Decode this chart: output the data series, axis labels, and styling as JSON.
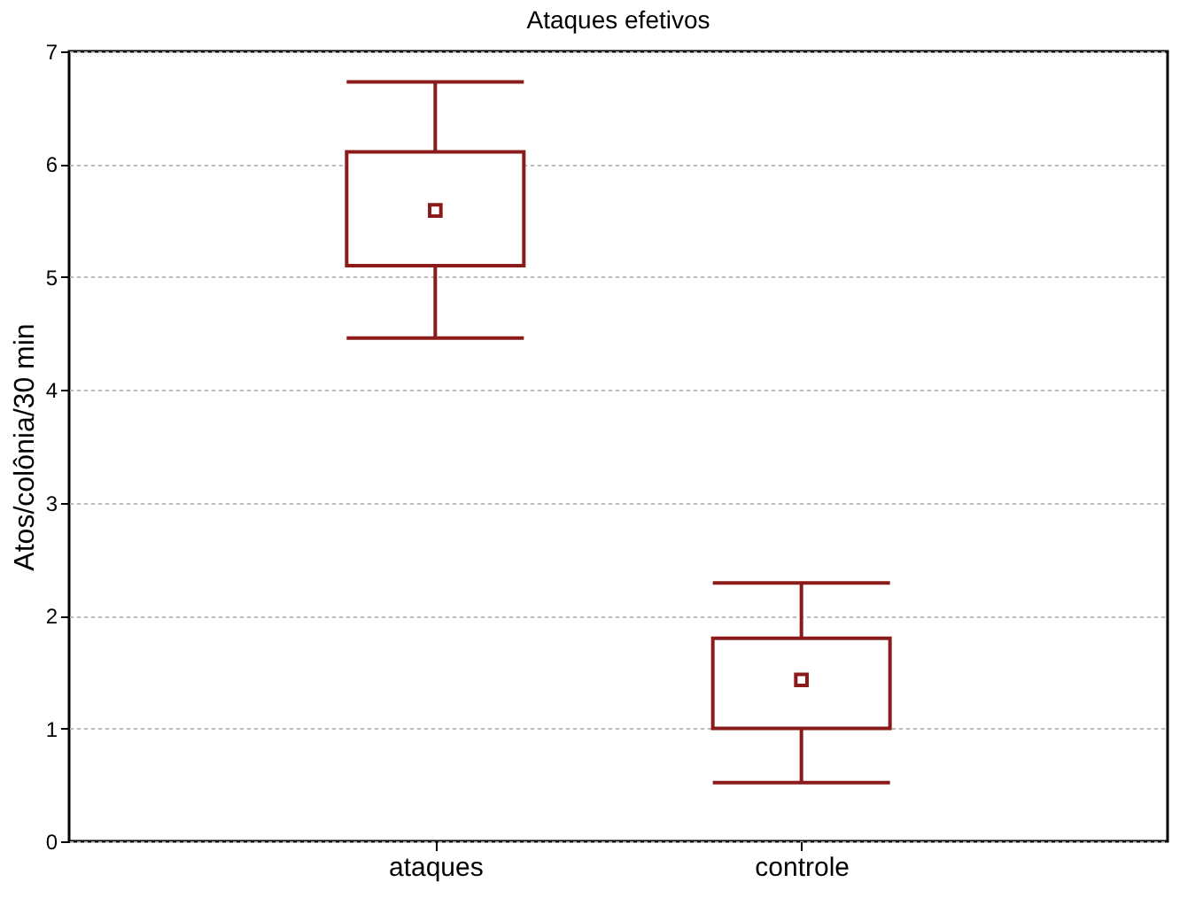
{
  "chart_data": {
    "type": "box",
    "title": "Ataques efetivos",
    "ylabel": "Atos/colônia/30 min",
    "categories": [
      "ataques",
      "controle"
    ],
    "boxes": [
      {
        "low": 4.46,
        "q1": 5.1,
        "median": 5.59,
        "q3": 6.11,
        "high": 6.73
      },
      {
        "low": 0.52,
        "q1": 1.0,
        "median": 1.43,
        "q3": 1.8,
        "high": 2.29
      }
    ],
    "color": "#8b1a1a",
    "ylim": [
      0,
      7
    ],
    "yticks": [
      0,
      1,
      2,
      3,
      4,
      5,
      6,
      7
    ],
    "grid": "y",
    "marker": "square"
  }
}
